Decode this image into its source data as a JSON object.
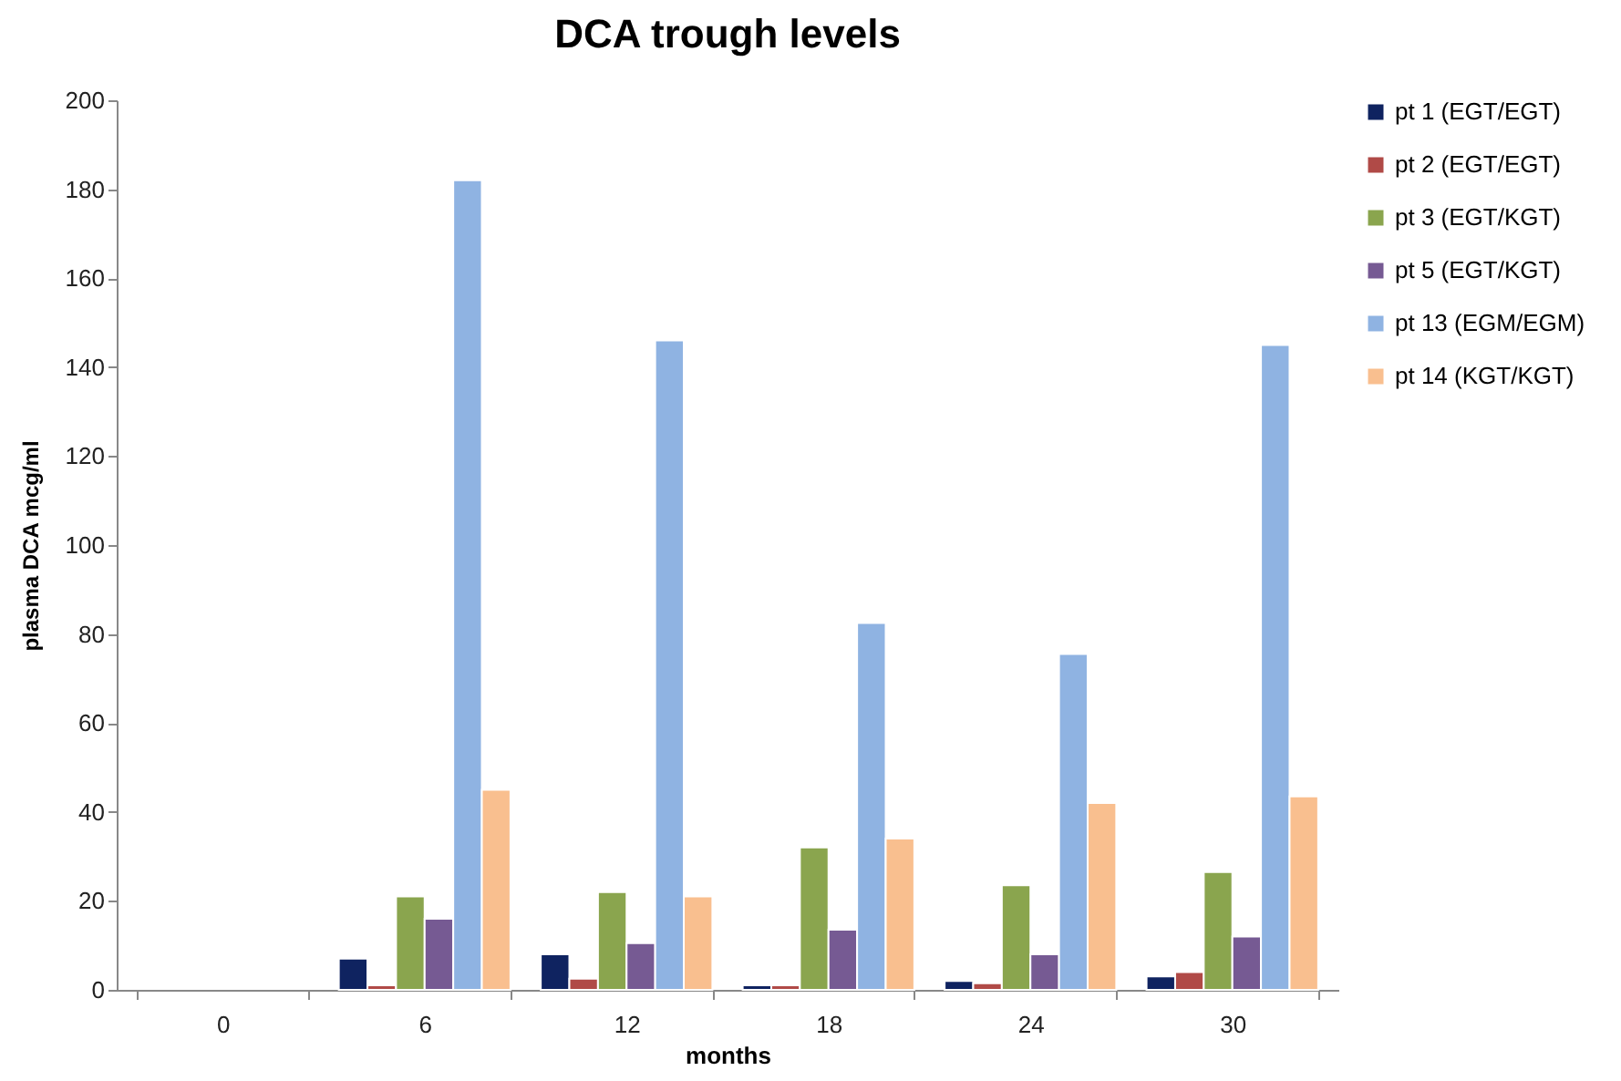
{
  "chart_data": {
    "type": "bar",
    "title": "DCA trough levels",
    "xlabel": "months",
    "ylabel": "plasma DCA mcg/ml",
    "categories": [
      "0",
      "6",
      "12",
      "18",
      "24",
      "30"
    ],
    "series": [
      {
        "name": "pt 1 (EGT/EGT)",
        "color": "#0f2360",
        "values": [
          null,
          7,
          8,
          1,
          2,
          3
        ]
      },
      {
        "name": "pt 2 (EGT/EGT)",
        "color": "#b04a47",
        "values": [
          null,
          1,
          2.5,
          1,
          1.5,
          4
        ]
      },
      {
        "name": "pt 3 (EGT/KGT)",
        "color": "#8aa54e",
        "values": [
          null,
          21,
          22,
          32,
          23.5,
          26.5
        ]
      },
      {
        "name": "pt 5 (EGT/KGT)",
        "color": "#765a93",
        "values": [
          null,
          16,
          10.5,
          13.5,
          8,
          12
        ]
      },
      {
        "name": "pt 13 (EGM/EGM)",
        "color": "#8fb3e2",
        "values": [
          null,
          182,
          146,
          82.5,
          75.5,
          145
        ]
      },
      {
        "name": "pt 14 (KGT/KGT)",
        "color": "#f9bf8f",
        "values": [
          null,
          45,
          21,
          34,
          42,
          43.5
        ]
      }
    ],
    "ylim": [
      0,
      200
    ],
    "yticks": [
      0,
      20,
      40,
      60,
      80,
      100,
      120,
      140,
      160,
      180,
      200
    ],
    "grid": false,
    "legend": "right"
  }
}
